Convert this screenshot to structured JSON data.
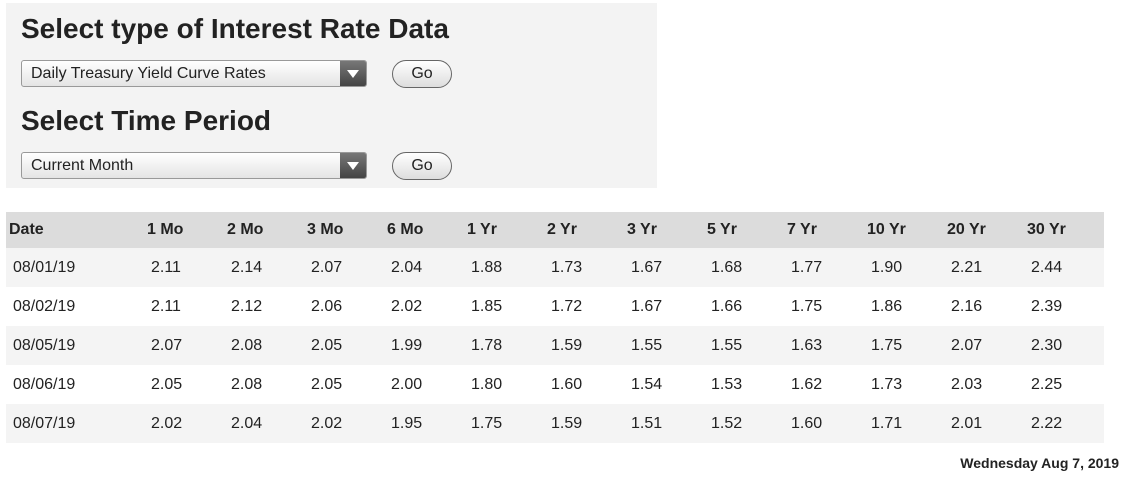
{
  "form": {
    "data_type": {
      "heading": "Select type of Interest Rate Data",
      "selected": "Daily Treasury Yield Curve Rates",
      "button": "Go"
    },
    "time_period": {
      "heading": "Select Time Period",
      "selected": "Current Month",
      "button": "Go"
    }
  },
  "table": {
    "columns": [
      "Date",
      "1 Mo",
      "2 Mo",
      "3 Mo",
      "6 Mo",
      "1 Yr",
      "2 Yr",
      "3 Yr",
      "5 Yr",
      "7 Yr",
      "10 Yr",
      "20 Yr",
      "30 Yr"
    ],
    "rows": [
      [
        "08/01/19",
        "2.11",
        "2.14",
        "2.07",
        "2.04",
        "1.88",
        "1.73",
        "1.67",
        "1.68",
        "1.77",
        "1.90",
        "2.21",
        "2.44"
      ],
      [
        "08/02/19",
        "2.11",
        "2.12",
        "2.06",
        "2.02",
        "1.85",
        "1.72",
        "1.67",
        "1.66",
        "1.75",
        "1.86",
        "2.16",
        "2.39"
      ],
      [
        "08/05/19",
        "2.07",
        "2.08",
        "2.05",
        "1.99",
        "1.78",
        "1.59",
        "1.55",
        "1.55",
        "1.63",
        "1.75",
        "2.07",
        "2.30"
      ],
      [
        "08/06/19",
        "2.05",
        "2.08",
        "2.05",
        "2.00",
        "1.80",
        "1.60",
        "1.54",
        "1.53",
        "1.62",
        "1.73",
        "2.03",
        "2.25"
      ],
      [
        "08/07/19",
        "2.02",
        "2.04",
        "2.02",
        "1.95",
        "1.75",
        "1.59",
        "1.51",
        "1.52",
        "1.60",
        "1.71",
        "2.01",
        "2.22"
      ]
    ]
  },
  "footer": {
    "date": "Wednesday Aug 7, 2019"
  }
}
